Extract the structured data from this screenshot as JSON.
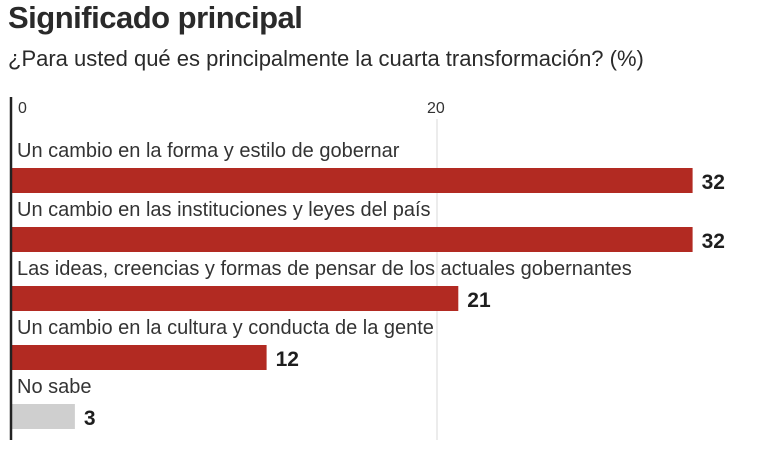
{
  "title": "Significado principal",
  "subtitle": "¿Para usted qué es principalmente la cuarta transformación? (%)",
  "chart_data": {
    "type": "bar",
    "orientation": "horizontal",
    "title": "Significado principal",
    "subtitle": "¿Para usted qué es principalmente la cuarta transformación? (%)",
    "categories": [
      "Un cambio en la forma y estilo de gobernar",
      "Un cambio en las instituciones y leyes del país",
      "Las ideas, creencias y formas de pensar de los actuales gobernantes",
      "Un cambio en la cultura y conducta de la gente",
      "No sabe"
    ],
    "values": [
      32,
      32,
      21,
      12,
      3
    ],
    "value_labels": [
      "32",
      "32",
      "21",
      "12",
      "3"
    ],
    "xticks": [
      0,
      20
    ],
    "xtick_labels": [
      "0",
      "20"
    ],
    "xlim": [
      0,
      32
    ],
    "colors": [
      "#b22a22",
      "#b22a22",
      "#b22a22",
      "#b22a22",
      "#cfcfcf"
    ],
    "grid": true,
    "legend": "none"
  }
}
